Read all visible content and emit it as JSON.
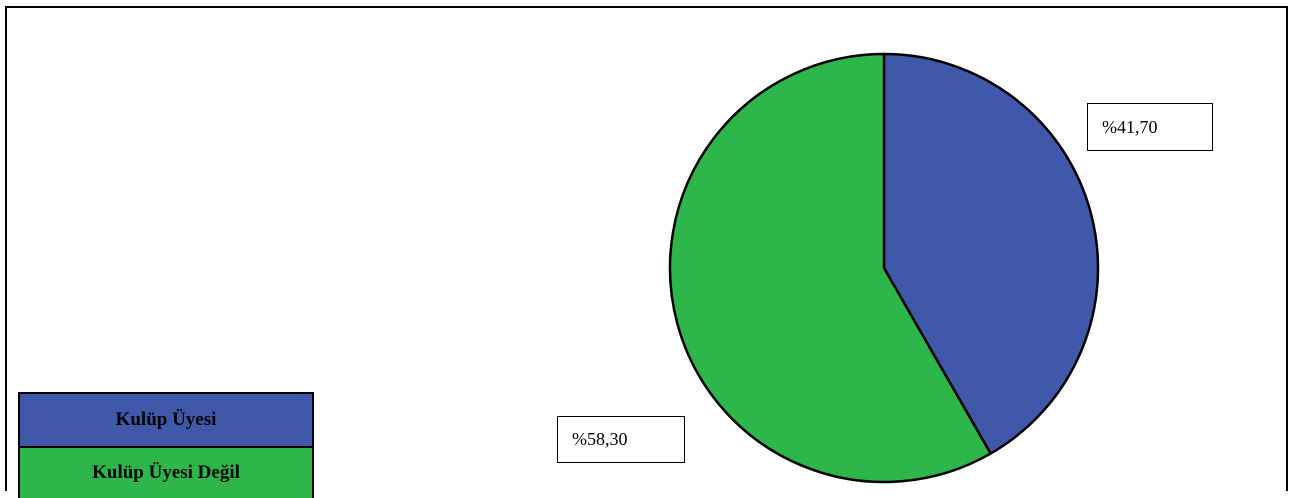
{
  "chart_data": {
    "type": "pie",
    "title": "",
    "categories": [
      "Kulüp Üyesi",
      "Kulüp Üyesi Değil"
    ],
    "values": [
      41.7,
      58.3
    ],
    "data_labels": [
      "%41,70",
      "%58,30"
    ],
    "colors": [
      "#3F58AA",
      "#2DB74A"
    ],
    "start_angle": "12 o'clock",
    "direction": "clockwise",
    "legend_position": "bottom-left"
  },
  "legend": {
    "items": [
      {
        "label": "Kulüp Üyesi",
        "color": "#3F58AA"
      },
      {
        "label": "Kulüp Üyesi Değil",
        "color": "#2DB74A"
      }
    ]
  }
}
